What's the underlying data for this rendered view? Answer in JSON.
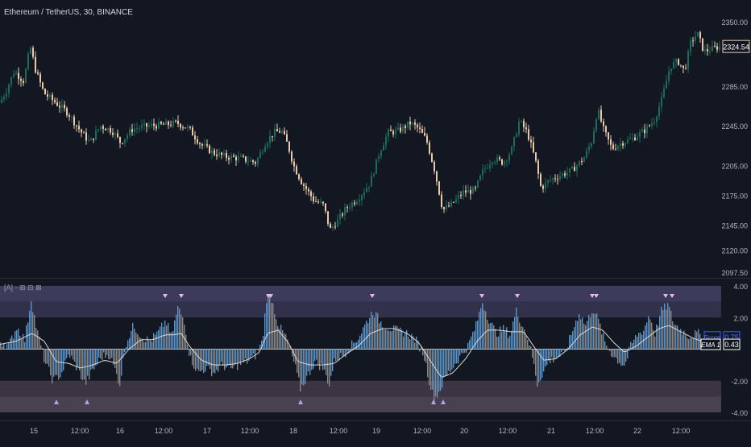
{
  "header": {
    "symbol_title": "Ethereum / TetherUS, 30, BINANCE"
  },
  "indicator": {
    "title": "[A] - ⊞ ⊟ ⊠"
  },
  "chart_data": [
    {
      "type": "candlestick",
      "title": "Ethereum / TetherUS, 30, BINANCE",
      "y_ticks": [
        2097.5,
        2120,
        2145,
        2175,
        2205,
        2245,
        2285,
        2350
      ],
      "y_tick_labels": [
        "2097.50",
        "2120.00",
        "2145.00",
        "2175.00",
        "2205.00",
        "2245.00",
        "2285.00",
        "2350.00"
      ],
      "ylim": [
        2097.5,
        2362
      ],
      "last_price_label": "2324.54",
      "last_price": 2324.54,
      "price_path": [
        [
          0,
          2268
        ],
        [
          8,
          2280
        ],
        [
          18,
          2300
        ],
        [
          30,
          2290
        ],
        [
          38,
          2325
        ],
        [
          45,
          2300
        ],
        [
          55,
          2278
        ],
        [
          70,
          2268
        ],
        [
          85,
          2258
        ],
        [
          100,
          2240
        ],
        [
          112,
          2228
        ],
        [
          125,
          2245
        ],
        [
          140,
          2240
        ],
        [
          150,
          2228
        ],
        [
          165,
          2242
        ],
        [
          185,
          2245
        ],
        [
          205,
          2246
        ],
        [
          220,
          2248
        ],
        [
          235,
          2242
        ],
        [
          250,
          2226
        ],
        [
          265,
          2218
        ],
        [
          280,
          2214
        ],
        [
          300,
          2212
        ],
        [
          318,
          2208
        ],
        [
          330,
          2228
        ],
        [
          340,
          2238
        ],
        [
          350,
          2240
        ],
        [
          358,
          2225
        ],
        [
          365,
          2205
        ],
        [
          375,
          2188
        ],
        [
          390,
          2170
        ],
        [
          402,
          2165
        ],
        [
          410,
          2140
        ],
        [
          420,
          2150
        ],
        [
          430,
          2162
        ],
        [
          445,
          2172
        ],
        [
          460,
          2188
        ],
        [
          472,
          2220
        ],
        [
          482,
          2238
        ],
        [
          495,
          2240
        ],
        [
          510,
          2248
        ],
        [
          520,
          2242
        ],
        [
          530,
          2230
        ],
        [
          540,
          2200
        ],
        [
          550,
          2160
        ],
        [
          560,
          2165
        ],
        [
          575,
          2178
        ],
        [
          590,
          2180
        ],
        [
          600,
          2200
        ],
        [
          612,
          2212
        ],
        [
          625,
          2208
        ],
        [
          635,
          2220
        ],
        [
          645,
          2250
        ],
        [
          655,
          2238
        ],
        [
          665,
          2210
        ],
        [
          672,
          2182
        ],
        [
          682,
          2190
        ],
        [
          695,
          2195
        ],
        [
          710,
          2200
        ],
        [
          725,
          2212
        ],
        [
          735,
          2230
        ],
        [
          742,
          2262
        ],
        [
          750,
          2240
        ],
        [
          760,
          2222
        ],
        [
          772,
          2228
        ],
        [
          785,
          2232
        ],
        [
          800,
          2240
        ],
        [
          812,
          2250
        ],
        [
          822,
          2272
        ],
        [
          832,
          2305
        ],
        [
          842,
          2310
        ],
        [
          850,
          2300
        ],
        [
          858,
          2330
        ],
        [
          866,
          2338
        ],
        [
          874,
          2320
        ],
        [
          882,
          2322
        ],
        [
          892,
          2324.54
        ]
      ]
    },
    {
      "type": "bar",
      "title": "[A] - ⊞ ⊟ ⊠",
      "y_ticks": [
        4,
        2,
        -2,
        -4
      ],
      "y_tick_labels": [
        "4.00",
        "2.00",
        "-2.00",
        "-4.00"
      ],
      "ylim": [
        -4,
        4
      ],
      "zones": {
        "upper": [
          2,
          4
        ],
        "lower": [
          -4,
          -2
        ]
      },
      "zero_line": 0,
      "labels": [
        {
          "name": "Score",
          "value": "0.75",
          "value_num": 0.75,
          "color": "#2962ff"
        },
        {
          "name": "EMA 1",
          "value": "0.43",
          "value_num": 0.43,
          "color": "#ffffff"
        }
      ],
      "score_path": [
        [
          0,
          0.5
        ],
        [
          10,
          0.2
        ],
        [
          20,
          1.4
        ],
        [
          30,
          0.6
        ],
        [
          38,
          3.2
        ],
        [
          45,
          1.2
        ],
        [
          55,
          -0.8
        ],
        [
          65,
          -2.0
        ],
        [
          75,
          -1.6
        ],
        [
          85,
          -0.3
        ],
        [
          95,
          -1.2
        ],
        [
          105,
          -2.2
        ],
        [
          115,
          -1.3
        ],
        [
          125,
          -0.5
        ],
        [
          135,
          -0.3
        ],
        [
          148,
          -2.2
        ],
        [
          155,
          0.3
        ],
        [
          165,
          1.5
        ],
        [
          175,
          0.8
        ],
        [
          185,
          0.5
        ],
        [
          195,
          1.0
        ],
        [
          205,
          1.8
        ],
        [
          212,
          0.8
        ],
        [
          220,
          2.6
        ],
        [
          228,
          1.8
        ],
        [
          235,
          -0.5
        ],
        [
          245,
          -1.5
        ],
        [
          255,
          -1.2
        ],
        [
          265,
          -1.5
        ],
        [
          275,
          -1.0
        ],
        [
          285,
          -1.3
        ],
        [
          295,
          -1.0
        ],
        [
          305,
          -0.8
        ],
        [
          315,
          -0.5
        ],
        [
          325,
          0.5
        ],
        [
          330,
          3.2
        ],
        [
          336,
          3.2
        ],
        [
          345,
          1.5
        ],
        [
          355,
          0.7
        ],
        [
          365,
          -1.0
        ],
        [
          372,
          -2.5
        ],
        [
          380,
          -1.8
        ],
        [
          390,
          -0.8
        ],
        [
          400,
          -1.2
        ],
        [
          408,
          -2.2
        ],
        [
          415,
          -0.6
        ],
        [
          425,
          -0.4
        ],
        [
          435,
          0.2
        ],
        [
          445,
          0.8
        ],
        [
          455,
          1.8
        ],
        [
          462,
          2.4
        ],
        [
          475,
          1.5
        ],
        [
          490,
          1.2
        ],
        [
          505,
          1.0
        ],
        [
          515,
          0.6
        ],
        [
          525,
          -0.3
        ],
        [
          532,
          -2.0
        ],
        [
          538,
          -3.2
        ],
        [
          545,
          -2.6
        ],
        [
          552,
          -1.8
        ],
        [
          560,
          -1.2
        ],
        [
          570,
          -0.5
        ],
        [
          580,
          0.2
        ],
        [
          590,
          1.5
        ],
        [
          598,
          3.0
        ],
        [
          605,
          2.0
        ],
        [
          615,
          1.0
        ],
        [
          625,
          1.3
        ],
        [
          632,
          0.9
        ],
        [
          640,
          2.4
        ],
        [
          647,
          1.6
        ],
        [
          655,
          0.6
        ],
        [
          660,
          -0.5
        ],
        [
          666,
          -2.2
        ],
        [
          672,
          -1.6
        ],
        [
          680,
          -0.8
        ],
        [
          690,
          -0.5
        ],
        [
          700,
          -0.3
        ],
        [
          710,
          1.2
        ],
        [
          718,
          2.3
        ],
        [
          726,
          1.5
        ],
        [
          735,
          2.6
        ],
        [
          742,
          1.8
        ],
        [
          750,
          0.4
        ],
        [
          760,
          -0.4
        ],
        [
          770,
          -0.9
        ],
        [
          775,
          -1.0
        ],
        [
          782,
          0.2
        ],
        [
          790,
          0.9
        ],
        [
          798,
          1.2
        ],
        [
          805,
          2.2
        ],
        [
          812,
          1.0
        ],
        [
          820,
          2.4
        ],
        [
          828,
          2.8
        ],
        [
          836,
          1.6
        ],
        [
          845,
          1.2
        ],
        [
          855,
          0.8
        ],
        [
          865,
          1.0
        ],
        [
          875,
          0.75
        ]
      ],
      "ema_path": [
        [
          0,
          0.3
        ],
        [
          20,
          0.5
        ],
        [
          40,
          1.0
        ],
        [
          55,
          0.5
        ],
        [
          70,
          -0.8
        ],
        [
          85,
          -0.9
        ],
        [
          100,
          -1.2
        ],
        [
          115,
          -1.0
        ],
        [
          130,
          -0.7
        ],
        [
          145,
          -0.9
        ],
        [
          160,
          0.0
        ],
        [
          175,
          0.6
        ],
        [
          190,
          0.6
        ],
        [
          205,
          0.9
        ],
        [
          215,
          0.9
        ],
        [
          225,
          1.0
        ],
        [
          235,
          0.2
        ],
        [
          250,
          -0.7
        ],
        [
          265,
          -1.0
        ],
        [
          280,
          -1.0
        ],
        [
          295,
          -0.9
        ],
        [
          310,
          -0.6
        ],
        [
          322,
          -0.2
        ],
        [
          332,
          1.0
        ],
        [
          345,
          1.2
        ],
        [
          358,
          0.4
        ],
        [
          370,
          -0.8
        ],
        [
          385,
          -1.0
        ],
        [
          400,
          -1.0
        ],
        [
          415,
          -0.9
        ],
        [
          430,
          -0.3
        ],
        [
          445,
          0.2
        ],
        [
          460,
          1.0
        ],
        [
          475,
          1.3
        ],
        [
          490,
          1.3
        ],
        [
          505,
          1.0
        ],
        [
          520,
          0.4
        ],
        [
          535,
          -0.8
        ],
        [
          548,
          -1.8
        ],
        [
          562,
          -1.5
        ],
        [
          578,
          -0.6
        ],
        [
          592,
          0.5
        ],
        [
          605,
          1.2
        ],
        [
          620,
          1.2
        ],
        [
          635,
          1.1
        ],
        [
          650,
          1.1
        ],
        [
          662,
          0.2
        ],
        [
          675,
          -0.7
        ],
        [
          690,
          -0.6
        ],
        [
          705,
          0.0
        ],
        [
          720,
          0.9
        ],
        [
          735,
          1.4
        ],
        [
          748,
          1.2
        ],
        [
          762,
          0.4
        ],
        [
          775,
          -0.2
        ],
        [
          790,
          0.2
        ],
        [
          805,
          0.8
        ],
        [
          818,
          1.3
        ],
        [
          830,
          1.5
        ],
        [
          845,
          1.1
        ],
        [
          860,
          0.7
        ],
        [
          875,
          0.43
        ]
      ],
      "markers_down": [
        205,
        225,
        333,
        336,
        462,
        598,
        642,
        735,
        740,
        826,
        834
      ],
      "markers_up": [
        70,
        108,
        373,
        538,
        550
      ]
    }
  ],
  "time_axis": {
    "labels": [
      "15",
      "12:00",
      "16",
      "12:00",
      "17",
      "12:00",
      "18",
      "12:00",
      "19",
      "12:00",
      "20",
      "12:00",
      "21",
      "12:00",
      "22",
      "12:00"
    ]
  },
  "colors": {
    "background": "#131722",
    "candle_up": "#1a6b5a",
    "candle_down": "#e8c9a8",
    "score_up": "#5b9bd5",
    "score_down": "#8c8c8c",
    "upper_zone": "#403d5e",
    "lower_zone": "#4a3f4f",
    "grid": "#1e222d",
    "marker_down": "#e8b9e6",
    "marker_up": "#b0a4e6"
  }
}
